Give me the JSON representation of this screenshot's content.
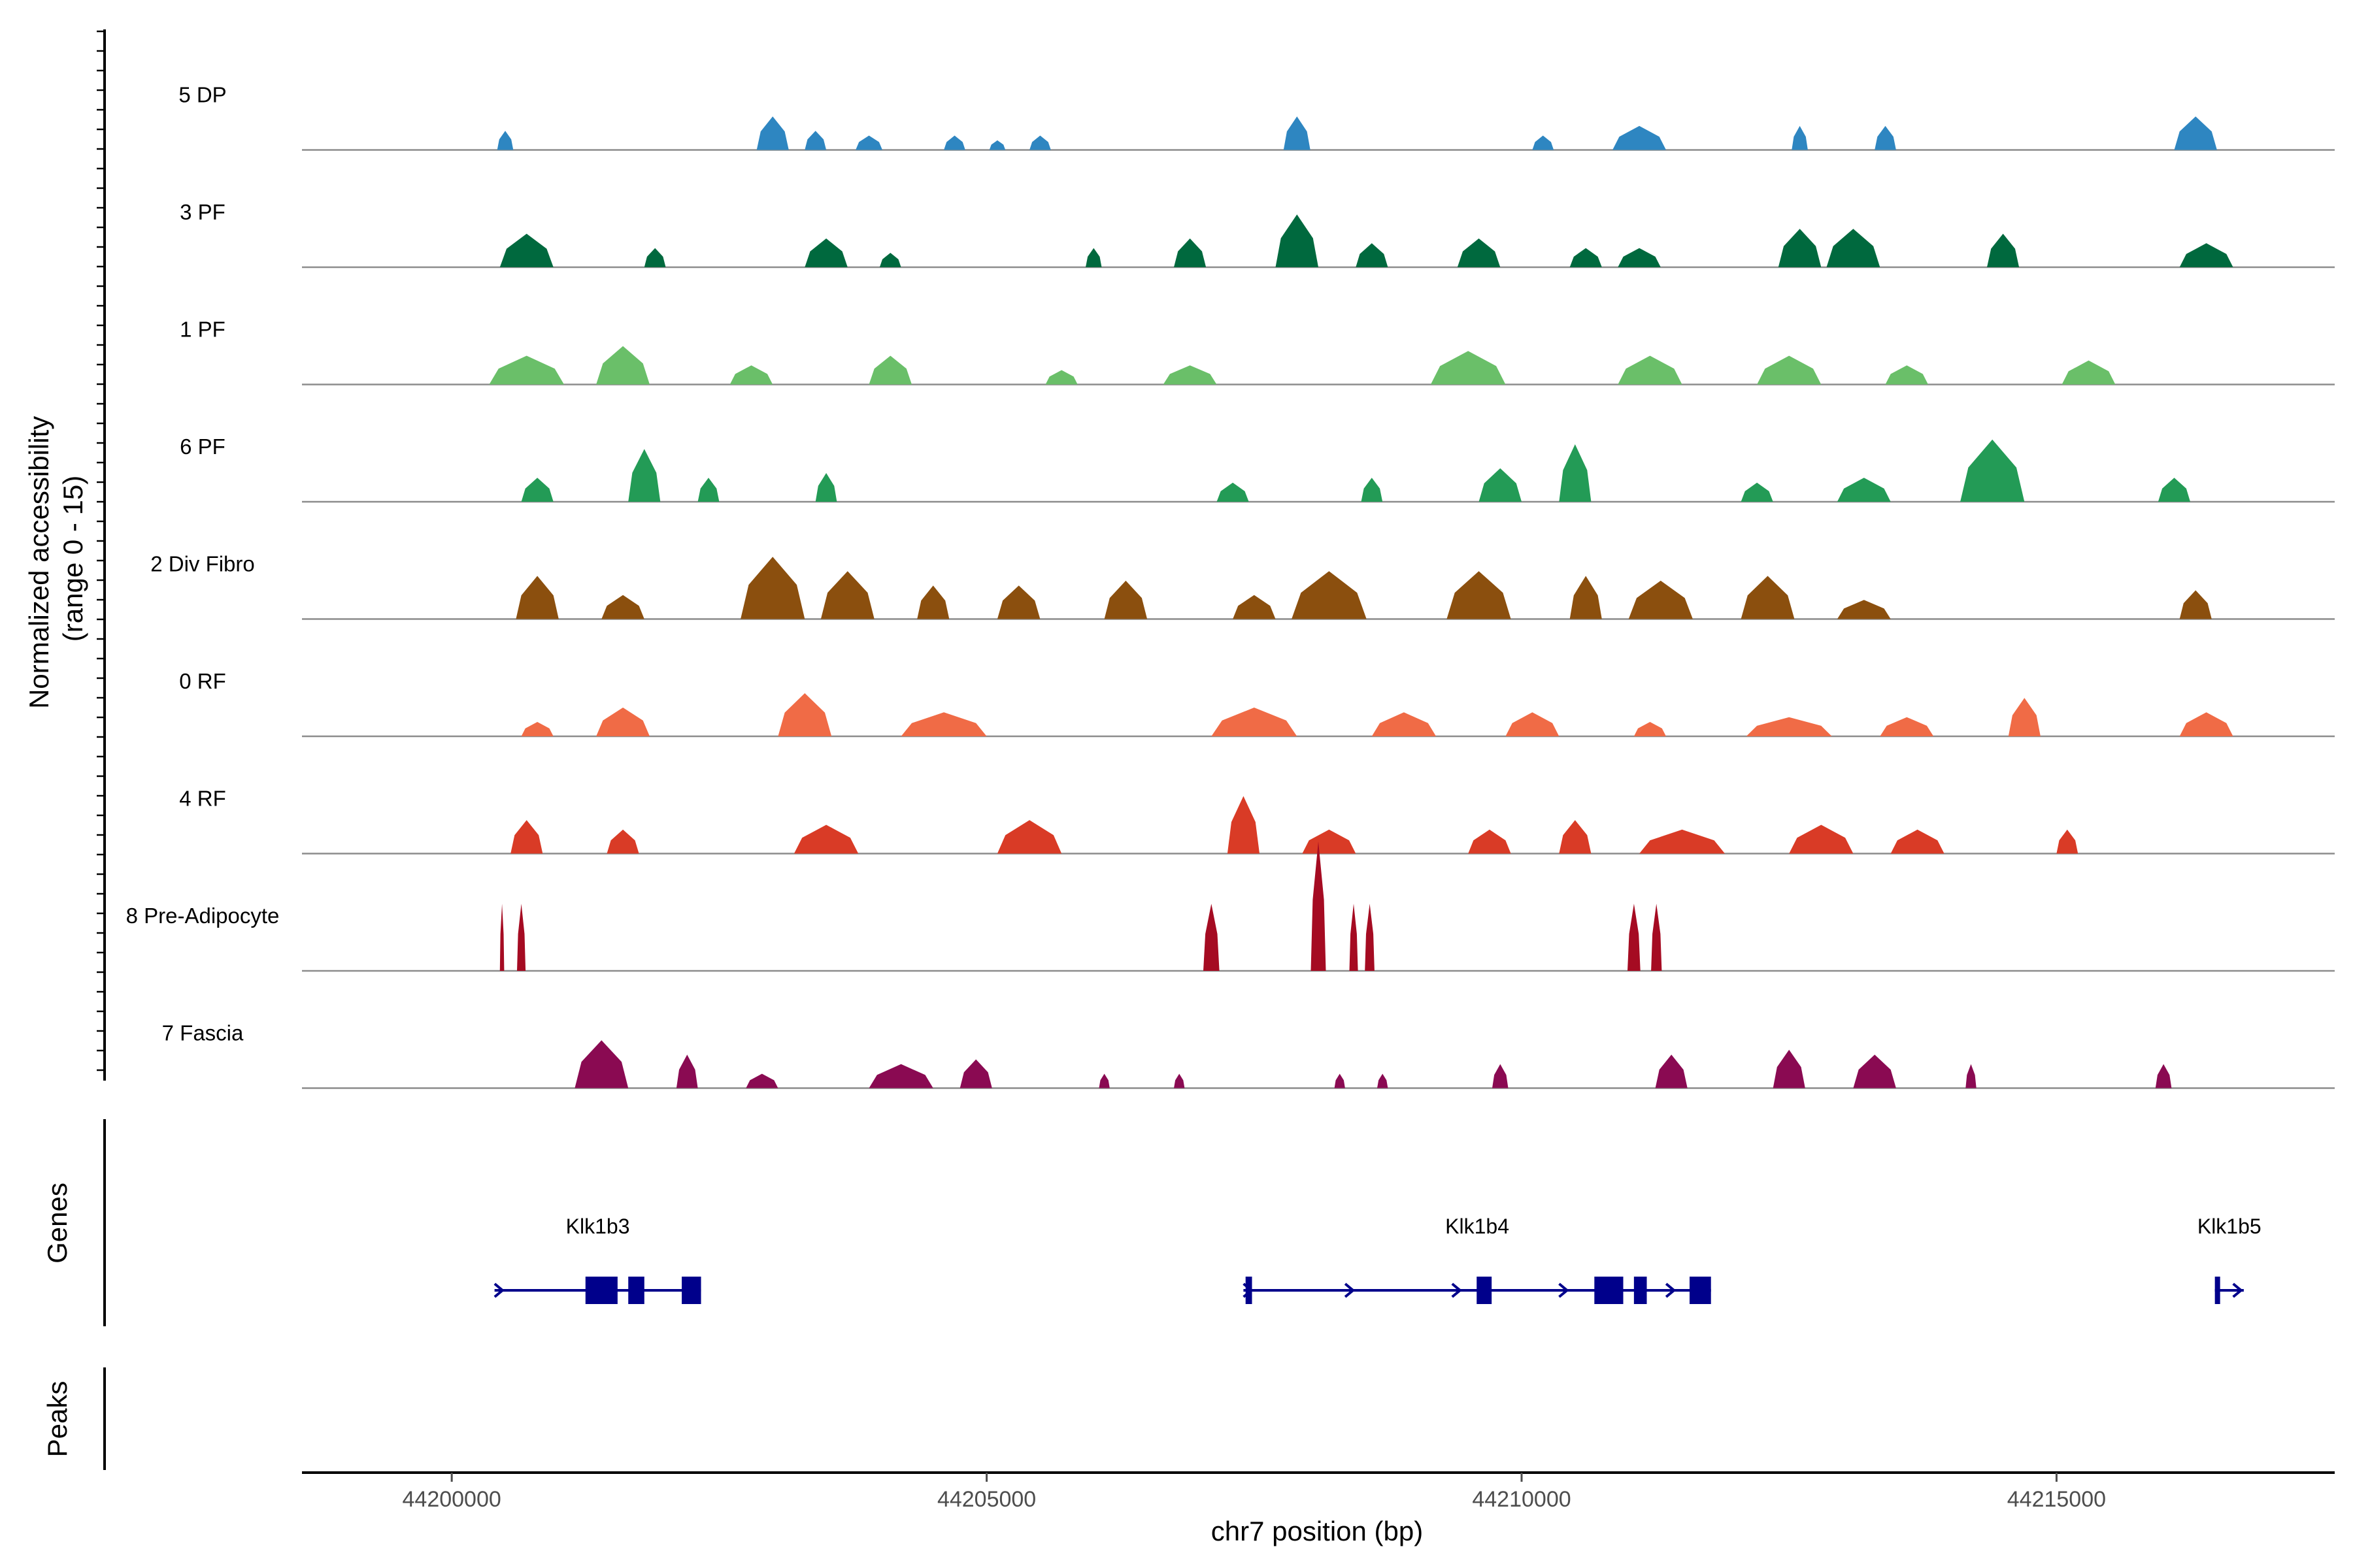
{
  "chart_data": {
    "type": "area",
    "title": "",
    "ylabel_line1": "Normalized accessibility",
    "ylabel_line2": "(range 0 - 15)",
    "xlabel": "chr7 position (bp)",
    "xlim": [
      44198600,
      44217600
    ],
    "ylim": [
      0,
      15
    ],
    "x_ticks": [
      {
        "value": 44200000,
        "label": "44200000"
      },
      {
        "value": 44205000,
        "label": "44205000"
      },
      {
        "value": 44210000,
        "label": "44210000"
      },
      {
        "value": 44215000,
        "label": "44215000"
      }
    ],
    "tracks": [
      {
        "name": "5 DP",
        "color": "#2e86c1",
        "peaks": [
          [
            44200500,
            150,
            4
          ],
          [
            44203000,
            300,
            7
          ],
          [
            44203400,
            200,
            4
          ],
          [
            44203900,
            250,
            3
          ],
          [
            44204700,
            200,
            3
          ],
          [
            44205100,
            150,
            2
          ],
          [
            44205500,
            200,
            3
          ],
          [
            44207900,
            250,
            7
          ],
          [
            44210200,
            200,
            3
          ],
          [
            44211100,
            500,
            5
          ],
          [
            44212600,
            150,
            5
          ],
          [
            44213400,
            200,
            5
          ],
          [
            44216300,
            400,
            7
          ]
        ]
      },
      {
        "name": "3 PF",
        "color": "#00693e",
        "peaks": [
          [
            44200700,
            500,
            7
          ],
          [
            44201900,
            200,
            4
          ],
          [
            44203500,
            400,
            6
          ],
          [
            44204100,
            200,
            3
          ],
          [
            44206000,
            150,
            4
          ],
          [
            44206900,
            300,
            6
          ],
          [
            44207900,
            400,
            11
          ],
          [
            44208600,
            300,
            5
          ],
          [
            44209600,
            400,
            6
          ],
          [
            44210600,
            300,
            4
          ],
          [
            44211100,
            400,
            4
          ],
          [
            44212600,
            400,
            8
          ],
          [
            44213100,
            500,
            8
          ],
          [
            44214500,
            300,
            7
          ],
          [
            44216400,
            500,
            5
          ]
        ]
      },
      {
        "name": "1 PF",
        "color": "#6abf69",
        "peaks": [
          [
            44200700,
            700,
            6
          ],
          [
            44201600,
            500,
            8
          ],
          [
            44202800,
            400,
            4
          ],
          [
            44204100,
            400,
            6
          ],
          [
            44205700,
            300,
            3
          ],
          [
            44206900,
            500,
            4
          ],
          [
            44209500,
            700,
            7
          ],
          [
            44211200,
            600,
            6
          ],
          [
            44212500,
            600,
            6
          ],
          [
            44213600,
            400,
            4
          ],
          [
            44215300,
            500,
            5
          ]
        ]
      },
      {
        "name": "6 PF",
        "color": "#239b56",
        "peaks": [
          [
            44200800,
            300,
            5
          ],
          [
            44201800,
            300,
            11
          ],
          [
            44202400,
            200,
            5
          ],
          [
            44203500,
            200,
            6
          ],
          [
            44207300,
            300,
            4
          ],
          [
            44208600,
            200,
            5
          ],
          [
            44209800,
            400,
            7
          ],
          [
            44210500,
            300,
            12
          ],
          [
            44212200,
            300,
            4
          ],
          [
            44213200,
            500,
            5
          ],
          [
            44214400,
            600,
            13
          ],
          [
            44216100,
            300,
            5
          ]
        ]
      },
      {
        "name": "2 Div Fibro",
        "color": "#8b4f0e",
        "peaks": [
          [
            44200800,
            400,
            9
          ],
          [
            44201600,
            400,
            5
          ],
          [
            44203000,
            600,
            13
          ],
          [
            44203700,
            500,
            10
          ],
          [
            44204500,
            300,
            7
          ],
          [
            44205300,
            400,
            7
          ],
          [
            44206300,
            400,
            8
          ],
          [
            44207500,
            400,
            5
          ],
          [
            44208200,
            700,
            10
          ],
          [
            44209600,
            600,
            10
          ],
          [
            44210600,
            300,
            9
          ],
          [
            44211300,
            600,
            8
          ],
          [
            44212300,
            500,
            9
          ],
          [
            44213200,
            500,
            4
          ],
          [
            44216300,
            300,
            6
          ]
        ]
      },
      {
        "name": "0 RF",
        "color": "#f06b46",
        "peaks": [
          [
            44200800,
            300,
            3
          ],
          [
            44201600,
            500,
            6
          ],
          [
            44203300,
            500,
            9
          ],
          [
            44204600,
            800,
            5
          ],
          [
            44207500,
            800,
            6
          ],
          [
            44208900,
            600,
            5
          ],
          [
            44210100,
            500,
            5
          ],
          [
            44211200,
            300,
            3
          ],
          [
            44212500,
            800,
            4
          ],
          [
            44213600,
            500,
            4
          ],
          [
            44214700,
            300,
            8
          ],
          [
            44216400,
            500,
            5
          ]
        ]
      },
      {
        "name": "4 RF",
        "color": "#d93b26",
        "peaks": [
          [
            44200700,
            300,
            7
          ],
          [
            44201600,
            300,
            5
          ],
          [
            44203500,
            600,
            6
          ],
          [
            44205400,
            600,
            7
          ],
          [
            44207400,
            300,
            12
          ],
          [
            44208200,
            500,
            5
          ],
          [
            44209700,
            400,
            5
          ],
          [
            44210500,
            300,
            7
          ],
          [
            44211500,
            800,
            5
          ],
          [
            44212800,
            600,
            6
          ],
          [
            44213700,
            500,
            5
          ],
          [
            44215100,
            200,
            5
          ]
        ]
      },
      {
        "name": "8 Pre-Adipocyte",
        "color": "#a50b22",
        "peaks": [
          [
            44200470,
            40,
            14
          ],
          [
            44200650,
            80,
            14
          ],
          [
            44207100,
            150,
            14
          ],
          [
            44208100,
            140,
            27
          ],
          [
            44208430,
            80,
            14
          ],
          [
            44208580,
            90,
            14
          ],
          [
            44211050,
            120,
            14
          ],
          [
            44211260,
            100,
            14
          ]
        ]
      },
      {
        "name": "7 Fascia",
        "color": "#8a0a52",
        "peaks": [
          [
            44201400,
            500,
            10
          ],
          [
            44202200,
            200,
            7
          ],
          [
            44202900,
            300,
            3
          ],
          [
            44204200,
            600,
            5
          ],
          [
            44204900,
            300,
            6
          ],
          [
            44206100,
            100,
            3
          ],
          [
            44206800,
            100,
            3
          ],
          [
            44208300,
            100,
            3
          ],
          [
            44208700,
            100,
            3
          ],
          [
            44209800,
            150,
            5
          ],
          [
            44211400,
            300,
            7
          ],
          [
            44212500,
            300,
            8
          ],
          [
            44213300,
            400,
            7
          ],
          [
            44214200,
            100,
            5
          ],
          [
            44216000,
            150,
            5
          ]
        ]
      }
    ],
    "genes_title": "Genes",
    "peaks_title": "Peaks",
    "genes": [
      {
        "name": "Klk1b3",
        "start": 44200400,
        "end": 44202330,
        "exons": [
          [
            44201250,
            44201550
          ],
          [
            44201650,
            44201800
          ],
          [
            44202150,
            44202330
          ]
        ],
        "arrows": [
          44200450
        ]
      },
      {
        "name": "Klk1b4",
        "start": 44207400,
        "end": 44211770,
        "exons": [
          [
            44207420,
            44207480
          ],
          [
            44209580,
            44209720
          ],
          [
            44210680,
            44210950
          ],
          [
            44211050,
            44211170
          ],
          [
            44211570,
            44211770
          ]
        ],
        "arrows": [
          44207450,
          44208400,
          44209400,
          44210400,
          44211400
        ]
      },
      {
        "name": "Klk1b5",
        "start": 44216480,
        "end": 44216750,
        "exons": [
          [
            44216480,
            44216510
          ]
        ],
        "arrows": [
          44216700
        ]
      }
    ]
  }
}
